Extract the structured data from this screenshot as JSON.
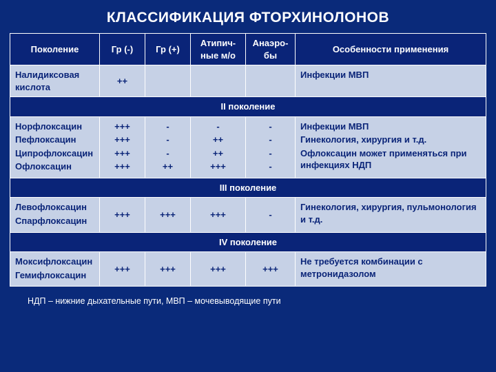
{
  "title": "КЛАССИФИКАЦИЯ ФТОРХИНОЛОНОВ",
  "headers": {
    "c1": "Поколение",
    "c2": "Гр (-)",
    "c3": "Гр (+)",
    "c4": "Атипич-ные м/о",
    "c5": "Анаэро-бы",
    "c6": "Особенности применения"
  },
  "gen1": {
    "drugs": "Налидиксовая кислота",
    "gr_neg": "++",
    "gr_pos": "",
    "atyp": "",
    "anaer": "",
    "notes": "Инфекции МВП"
  },
  "gen2_label": "II поколение",
  "gen2": {
    "d1": "Норфлоксацин",
    "d2": "Пефлоксацин",
    "d3": "Ципрофлоксацин",
    "d4": "Офлоксацин",
    "g1": "+++",
    "g2": "+++",
    "g3": "+++",
    "g4": "+++",
    "p1": "-",
    "p2": "-",
    "p3": "-",
    "p4": "++",
    "a1": "-",
    "a2": "++",
    "a3": "++",
    "a4": "+++",
    "n1": "-",
    "n2": "-",
    "n3": "-",
    "n4": "-",
    "note1": "Инфекции МВП",
    "note2": "Гинекология, хирургия и т.д.",
    "note3": "Офлоксацин может применяться при инфекциях НДП"
  },
  "gen3_label": "III поколение",
  "gen3": {
    "d1": "Левофлоксацин",
    "d2": "Спарфлоксацин",
    "gr_neg": "+++",
    "gr_pos": "+++",
    "atyp": "+++",
    "anaer": "-",
    "notes": "Гинекология, хирургия, пульмонология и т.д."
  },
  "gen4_label": "IV поколение",
  "gen4": {
    "d1": "Моксифлоксацин",
    "d2": "Гемифлоксацин",
    "gr_neg": "+++",
    "gr_pos": "+++",
    "atyp": "+++",
    "anaer": "+++",
    "notes": "Не требуется комбинации с метронидазолом"
  },
  "footnote": "НДП – нижние дыхательные пути, МВП – мочевыводящие пути"
}
